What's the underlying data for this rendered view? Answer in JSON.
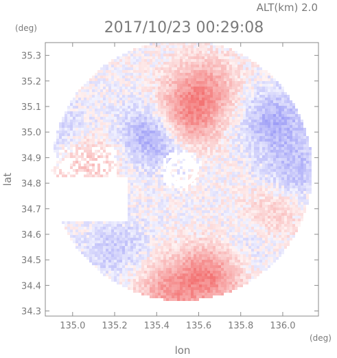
{
  "chart_data": {
    "type": "heatmap",
    "title": "2017/10/23 00:29:08",
    "subtitle": "ALT(km) 2.0",
    "xlabel": "lon",
    "ylabel": "lat",
    "x_unit": "(deg)",
    "y_unit": "(deg)",
    "xlim": [
      134.87,
      136.17
    ],
    "ylim": [
      34.28,
      35.35
    ],
    "x_ticks": [
      "135.0",
      "135.2",
      "135.4",
      "135.6",
      "135.8",
      "136.0"
    ],
    "y_ticks": [
      "34.3",
      "34.4",
      "34.5",
      "34.6",
      "34.7",
      "34.8",
      "34.9",
      "35.0",
      "35.1",
      "35.2",
      "35.3"
    ],
    "radar_center": [
      135.52,
      34.85
    ],
    "radar_radius_deg": 0.62,
    "grid": false,
    "legend": "none",
    "colors": {
      "positive": "#f26a6a",
      "negative": "#6a6af2",
      "neutral": "#ffffff",
      "axis": "#8a8a8a"
    },
    "regions": [
      {
        "lon": 135.52,
        "lat": 35.05,
        "value": 0.9
      },
      {
        "lon": 135.62,
        "lat": 35.18,
        "value": 0.6
      },
      {
        "lon": 135.4,
        "lat": 35.0,
        "value": -0.8
      },
      {
        "lon": 135.95,
        "lat": 35.05,
        "value": -0.5
      },
      {
        "lon": 136.05,
        "lat": 34.85,
        "value": -0.4
      },
      {
        "lon": 135.95,
        "lat": 34.7,
        "value": 0.3
      },
      {
        "lon": 135.65,
        "lat": 34.45,
        "value": 0.8
      },
      {
        "lon": 135.45,
        "lat": 34.38,
        "value": 0.6
      },
      {
        "lon": 135.2,
        "lat": 34.55,
        "value": -0.3
      },
      {
        "lon": 135.05,
        "lat": 34.9,
        "value": 0.4
      },
      {
        "lon": 134.95,
        "lat": 35.0,
        "value": -0.3
      },
      {
        "lon": 135.8,
        "lat": 34.55,
        "value": -0.2
      }
    ]
  }
}
